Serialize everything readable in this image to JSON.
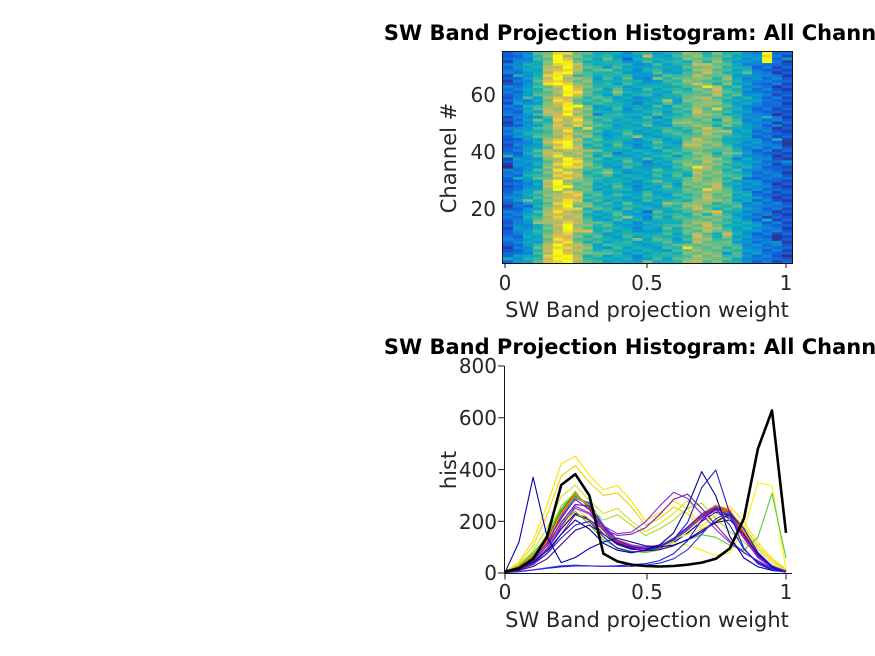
{
  "figure": {
    "background": "#ffffff"
  },
  "chart_data": [
    {
      "type": "heatmap",
      "title": "SW Band Projection Histogram: All Channels",
      "xlabel": "SW Band projection weight",
      "ylabel": "Channel #",
      "x_ticks": [
        0,
        0.5,
        1
      ],
      "x_tick_labels": [
        "0",
        "0.5",
        "1"
      ],
      "y_ticks": [
        20,
        40,
        60
      ],
      "y_tick_labels": [
        "20",
        "40",
        "60"
      ],
      "xlim": [
        0,
        1
      ],
      "ylim": [
        1,
        76
      ],
      "n_channels": 76,
      "n_bins": 29,
      "colormap": "parula",
      "values_scale": "relative histogram count 0 (low, dark blue) to 9 (high, yellow); estimated from pixel colors",
      "rows_top_to_bottom": [
        "12356986545434544566565433921",
        "23447897554543454456765442211",
        "12358976645454345567656433221",
        "22456798654544544556675532211",
        "13346886555443445466765443221",
        "22457797644534454557665432211",
        "12345878655444544566656533221",
        "23456786654454445556765442211",
        "12346897554543454467665433221",
        "22457877645444445556656432211",
        "13346798654454344566765443211",
        "22456887555444454557665532221",
        "12347976644543445466675433211",
        "23456788554444544556766442211",
        "12346896655454445567655533221",
        "22457877544544354556665432211",
        "13356797655443445466765443221",
        "22446886554454455457656432211",
        "12357987645544445566665533221",
        "23458997554443454567665432211"
      ]
    },
    {
      "type": "line",
      "title": "SW Band Projection Histogram: All Channels",
      "xlabel": "SW Band projection weight",
      "ylabel": "hist",
      "x_tick_labels": [
        "0",
        "0.5",
        "1"
      ],
      "y_tick_labels": [
        "0",
        "200",
        "400",
        "600",
        "800"
      ],
      "xlim": [
        0,
        1
      ],
      "ylim": [
        0,
        800
      ],
      "legend": "none",
      "grid": false,
      "x": [
        0,
        0.05,
        0.1,
        0.15,
        0.2,
        0.25,
        0.3,
        0.35,
        0.4,
        0.45,
        0.5,
        0.55,
        0.6,
        0.65,
        0.7,
        0.75,
        0.8,
        0.85,
        0.9,
        0.95,
        1
      ],
      "series": [
        {
          "name": "line-blue-01",
          "color": "#2020ff",
          "width": 1.1,
          "y": [
            3,
            22,
            58,
            118,
            225,
            298,
            262,
            175,
            122,
            100,
            94,
            104,
            130,
            172,
            222,
            258,
            232,
            150,
            68,
            24,
            7
          ]
        },
        {
          "name": "line-blue-02",
          "color": "#0048ff",
          "width": 1.1,
          "y": [
            2,
            20,
            52,
            110,
            210,
            288,
            272,
            185,
            128,
            104,
            96,
            106,
            134,
            178,
            228,
            262,
            225,
            142,
            62,
            22,
            6
          ]
        },
        {
          "name": "line-azure-03",
          "color": "#0070ff",
          "width": 1.1,
          "y": [
            3,
            24,
            62,
            125,
            235,
            305,
            255,
            168,
            118,
            98,
            92,
            102,
            128,
            170,
            220,
            252,
            228,
            148,
            66,
            23,
            7
          ]
        },
        {
          "name": "line-sky-04",
          "color": "#0098ff",
          "width": 1.1,
          "y": [
            2,
            21,
            55,
            115,
            220,
            295,
            268,
            180,
            125,
            102,
            95,
            105,
            132,
            175,
            225,
            260,
            230,
            146,
            64,
            22,
            6
          ]
        },
        {
          "name": "line-cyan-05",
          "color": "#00bfe0",
          "width": 1.1,
          "y": [
            3,
            23,
            60,
            122,
            230,
            302,
            258,
            172,
            120,
            99,
            93,
            103,
            130,
            173,
            223,
            256,
            226,
            144,
            63,
            22,
            6
          ]
        },
        {
          "name": "line-teal-06",
          "color": "#00d8c0",
          "width": 1.1,
          "y": [
            2,
            20,
            54,
            112,
            215,
            290,
            265,
            178,
            124,
            101,
            94,
            104,
            131,
            174,
            224,
            258,
            228,
            145,
            63,
            22,
            6
          ]
        },
        {
          "name": "line-spring-07",
          "color": "#00c878",
          "width": 1.1,
          "y": [
            3,
            22,
            57,
            118,
            224,
            296,
            260,
            174,
            121,
            100,
            93,
            103,
            129,
            171,
            221,
            254,
            225,
            143,
            62,
            21,
            6
          ]
        },
        {
          "name": "line-green-08",
          "color": "#00b400",
          "width": 1.1,
          "y": [
            2,
            26,
            65,
            130,
            240,
            310,
            250,
            165,
            115,
            96,
            91,
            101,
            127,
            168,
            218,
            250,
            230,
            150,
            68,
            24,
            7
          ]
        },
        {
          "name": "line-green-09",
          "color": "#22c822",
          "width": 1.1,
          "y": [
            3,
            30,
            72,
            140,
            250,
            315,
            245,
            160,
            112,
            95,
            90,
            100,
            125,
            165,
            215,
            248,
            232,
            152,
            70,
            25,
            7
          ]
        },
        {
          "name": "line-navy-10",
          "color": "#000080",
          "width": 1.1,
          "y": [
            2,
            15,
            40,
            90,
            170,
            230,
            210,
            150,
            110,
            92,
            88,
            96,
            118,
            155,
            200,
            235,
            210,
            135,
            60,
            20,
            5
          ]
        },
        {
          "name": "line-yellow-wide-11",
          "color": "#ffe000",
          "width": 1.1,
          "y": [
            5,
            42,
            125,
            262,
            422,
            452,
            378,
            322,
            338,
            278,
            202,
            232,
            278,
            248,
            182,
            222,
            258,
            198,
            118,
            58,
            14
          ]
        },
        {
          "name": "line-yellow-wide-12",
          "color": "#f0d000",
          "width": 1.1,
          "y": [
            4,
            35,
            105,
            225,
            375,
            415,
            350,
            300,
            310,
            255,
            185,
            210,
            255,
            230,
            170,
            200,
            235,
            180,
            105,
            50,
            12
          ]
        },
        {
          "name": "line-yellow-right-13",
          "color": "#ffef00",
          "width": 1.1,
          "y": [
            3,
            18,
            58,
            108,
            178,
            238,
            198,
            148,
            118,
            98,
            88,
            98,
            118,
            108,
            88,
            68,
            78,
            168,
            348,
            338,
            14
          ]
        },
        {
          "name": "line-yellowgreen-14",
          "color": "#d9e021",
          "width": 1.1,
          "y": [
            4,
            30,
            85,
            175,
            295,
            340,
            280,
            230,
            250,
            200,
            160,
            190,
            230,
            280,
            230,
            190,
            230,
            170,
            95,
            40,
            10
          ]
        },
        {
          "name": "line-yellowgreen-15",
          "color": "#aadd22",
          "width": 1.1,
          "y": [
            3,
            25,
            70,
            150,
            260,
            310,
            255,
            205,
            225,
            185,
            145,
            170,
            205,
            250,
            270,
            210,
            160,
            120,
            70,
            30,
            8
          ]
        },
        {
          "name": "line-green-right-16",
          "color": "#55cc33",
          "width": 1.1,
          "y": [
            2,
            28,
            78,
            138,
            198,
            238,
            188,
            128,
            98,
            84,
            79,
            89,
            108,
            128,
            148,
            138,
            108,
            88,
            138,
            308,
            58
          ]
        },
        {
          "name": "line-paleyellow-17",
          "color": "#e8e84a",
          "width": 1.1,
          "y": [
            3,
            20,
            60,
            120,
            200,
            250,
            210,
            160,
            130,
            110,
            100,
            110,
            130,
            150,
            170,
            190,
            210,
            160,
            90,
            40,
            10
          ]
        },
        {
          "name": "line-red-18",
          "color": "#e02800",
          "width": 1.1,
          "y": [
            3,
            25,
            63,
            126,
            236,
            306,
            254,
            168,
            117,
            97,
            92,
            102,
            128,
            170,
            220,
            253,
            235,
            155,
            70,
            24,
            7
          ]
        },
        {
          "name": "line-orangered-19",
          "color": "#ff4500",
          "width": 1.1,
          "y": [
            2,
            23,
            59,
            120,
            228,
            300,
            261,
            176,
            122,
            100,
            94,
            104,
            131,
            174,
            224,
            260,
            240,
            158,
            72,
            25,
            7
          ]
        },
        {
          "name": "line-orange-20",
          "color": "#ff8c00",
          "width": 1.1,
          "y": [
            3,
            24,
            61,
            123,
            232,
            303,
            257,
            171,
            119,
            98,
            92,
            102,
            129,
            172,
            222,
            262,
            245,
            160,
            73,
            26,
            8
          ]
        },
        {
          "name": "line-purple-mid-21",
          "color": "#8a2be2",
          "width": 1.1,
          "y": [
            3,
            14,
            38,
            88,
            178,
            258,
            232,
            182,
            152,
            158,
            198,
            258,
            312,
            288,
            228,
            168,
            118,
            78,
            48,
            18,
            6
          ]
        },
        {
          "name": "line-purple-mid-22",
          "color": "#7b1fa2",
          "width": 1.1,
          "y": [
            2,
            12,
            32,
            75,
            150,
            225,
            205,
            170,
            145,
            150,
            175,
            225,
            285,
            305,
            250,
            185,
            125,
            80,
            45,
            16,
            5
          ]
        },
        {
          "name": "line-purple-23",
          "color": "#9400d3",
          "width": 1.1,
          "y": [
            3,
            20,
            55,
            115,
            215,
            285,
            245,
            165,
            118,
            98,
            92,
            102,
            128,
            168,
            215,
            248,
            222,
            145,
            65,
            22,
            7
          ]
        },
        {
          "name": "line-purple-24",
          "color": "#6a0dad",
          "width": 1.1,
          "y": [
            2,
            18,
            48,
            105,
            195,
            265,
            258,
            178,
            125,
            102,
            95,
            105,
            132,
            175,
            225,
            255,
            215,
            135,
            60,
            20,
            6
          ]
        },
        {
          "name": "line-indigo-25",
          "color": "#4b0082",
          "width": 1.1,
          "y": [
            2,
            10,
            25,
            55,
            110,
            165,
            185,
            150,
            115,
            95,
            85,
            90,
            105,
            130,
            165,
            195,
            205,
            150,
            70,
            25,
            8
          ]
        },
        {
          "name": "line-violet-26",
          "color": "#9932cc",
          "width": 1.1,
          "y": [
            2,
            16,
            44,
            95,
            185,
            250,
            228,
            168,
            128,
            108,
            100,
            108,
            130,
            168,
            212,
            242,
            215,
            138,
            62,
            21,
            6
          ]
        },
        {
          "name": "line-blue-spike-left-27",
          "color": "#0000b4",
          "width": 1.1,
          "y": [
            2,
            120,
            370,
            140,
            40,
            60,
            95,
            120,
            135,
            120,
            105,
            100,
            108,
            128,
            158,
            198,
            228,
            172,
            75,
            22,
            5
          ]
        },
        {
          "name": "line-blue-tall-right-28",
          "color": "#00008f",
          "width": 1.1,
          "y": [
            3,
            18,
            42,
            85,
            150,
            205,
            170,
            115,
            88,
            78,
            88,
            108,
            155,
            258,
            392,
            298,
            142,
            58,
            24,
            10,
            4
          ]
        },
        {
          "name": "line-blue-tall-right-29",
          "color": "#2222cc",
          "width": 1.1,
          "y": [
            2,
            15,
            38,
            75,
            135,
            185,
            200,
            140,
            95,
            82,
            85,
            100,
            130,
            195,
            330,
            398,
            230,
            95,
            35,
            12,
            4
          ]
        },
        {
          "name": "line-blue-flatlow-30",
          "color": "#1a1ae6",
          "width": 1.1,
          "y": [
            1,
            6,
            12,
            18,
            24,
            27,
            27,
            26,
            28,
            32,
            36,
            48,
            75,
            125,
            205,
            248,
            185,
            92,
            40,
            14,
            3
          ]
        },
        {
          "name": "line-blue-flatlow-31",
          "color": "#3030e0",
          "width": 1.1,
          "y": [
            1,
            5,
            12,
            20,
            28,
            30,
            28,
            26,
            25,
            26,
            30,
            38,
            55,
            90,
            150,
            210,
            235,
            170,
            80,
            28,
            5
          ]
        },
        {
          "name": "line-black-thick",
          "color": "#000000",
          "width": 2.6,
          "y": [
            5,
            18,
            55,
            140,
            340,
            382,
            300,
            75,
            45,
            32,
            27,
            25,
            27,
            32,
            40,
            55,
            95,
            210,
            480,
            628,
            155
          ]
        }
      ]
    }
  ]
}
